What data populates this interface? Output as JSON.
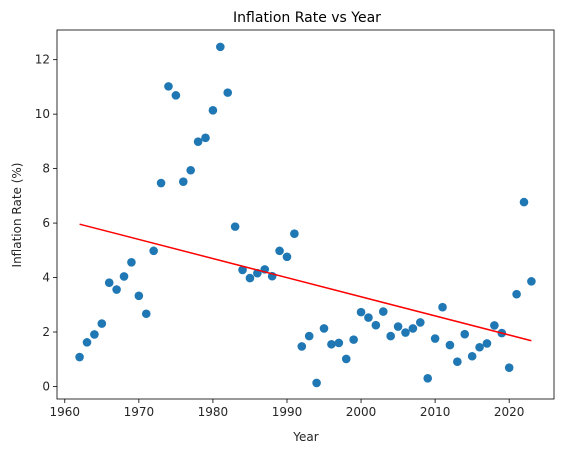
{
  "chart_data": {
    "type": "scatter",
    "title": "Inflation Rate vs Year",
    "xlabel": "Year",
    "ylabel": "Inflation Rate (%)",
    "xlim": [
      1958.95,
      2026.05
    ],
    "ylim": [
      -0.46,
      13.09
    ],
    "grid": false,
    "legend": "none",
    "x_ticks": [
      1960,
      1970,
      1980,
      1990,
      2000,
      2010,
      2020
    ],
    "y_ticks": [
      0,
      2,
      4,
      6,
      8,
      10,
      12
    ],
    "point_color": "#1f77b4",
    "trend_color": "#ff0000",
    "series": [
      {
        "x": [
          1962,
          1963,
          1964,
          1965,
          1966,
          1967,
          1968,
          1969,
          1970,
          1971,
          1972,
          1973,
          1974,
          1975,
          1976,
          1977,
          1978,
          1979,
          1980,
          1981,
          1982,
          1983,
          1984,
          1985,
          1986,
          1987,
          1988,
          1989,
          1990,
          1991,
          1992,
          1993,
          1994,
          1995,
          1996,
          1997,
          1998,
          1999,
          2000,
          2001,
          2002,
          2003,
          2004,
          2005,
          2006,
          2007,
          2008,
          2009,
          2010,
          2011,
          2012,
          2013,
          2014,
          2015,
          2016,
          2017,
          2018,
          2019,
          2020,
          2021,
          2022,
          2023
        ],
        "y": [
          1.08,
          1.62,
          1.91,
          2.31,
          3.81,
          3.56,
          4.04,
          4.56,
          3.33,
          2.67,
          4.98,
          7.47,
          11.02,
          10.69,
          7.52,
          7.94,
          8.99,
          9.13,
          10.14,
          12.47,
          10.79,
          5.87,
          4.28,
          3.98,
          4.16,
          4.3,
          4.05,
          4.98,
          4.76,
          5.61,
          1.47,
          1.85,
          0.13,
          2.13,
          1.55,
          1.6,
          1.01,
          1.72,
          2.73,
          2.53,
          2.25,
          2.75,
          1.85,
          2.2,
          1.98,
          2.13,
          2.35,
          0.3,
          1.76,
          2.91,
          1.52,
          0.91,
          1.92,
          1.11,
          1.44,
          1.58,
          2.24,
          1.96,
          0.69,
          3.39,
          6.77,
          3.86
        ]
      }
    ],
    "trend_line": {
      "x": [
        1962,
        2023
      ],
      "y": [
        5.96,
        1.68
      ]
    }
  }
}
